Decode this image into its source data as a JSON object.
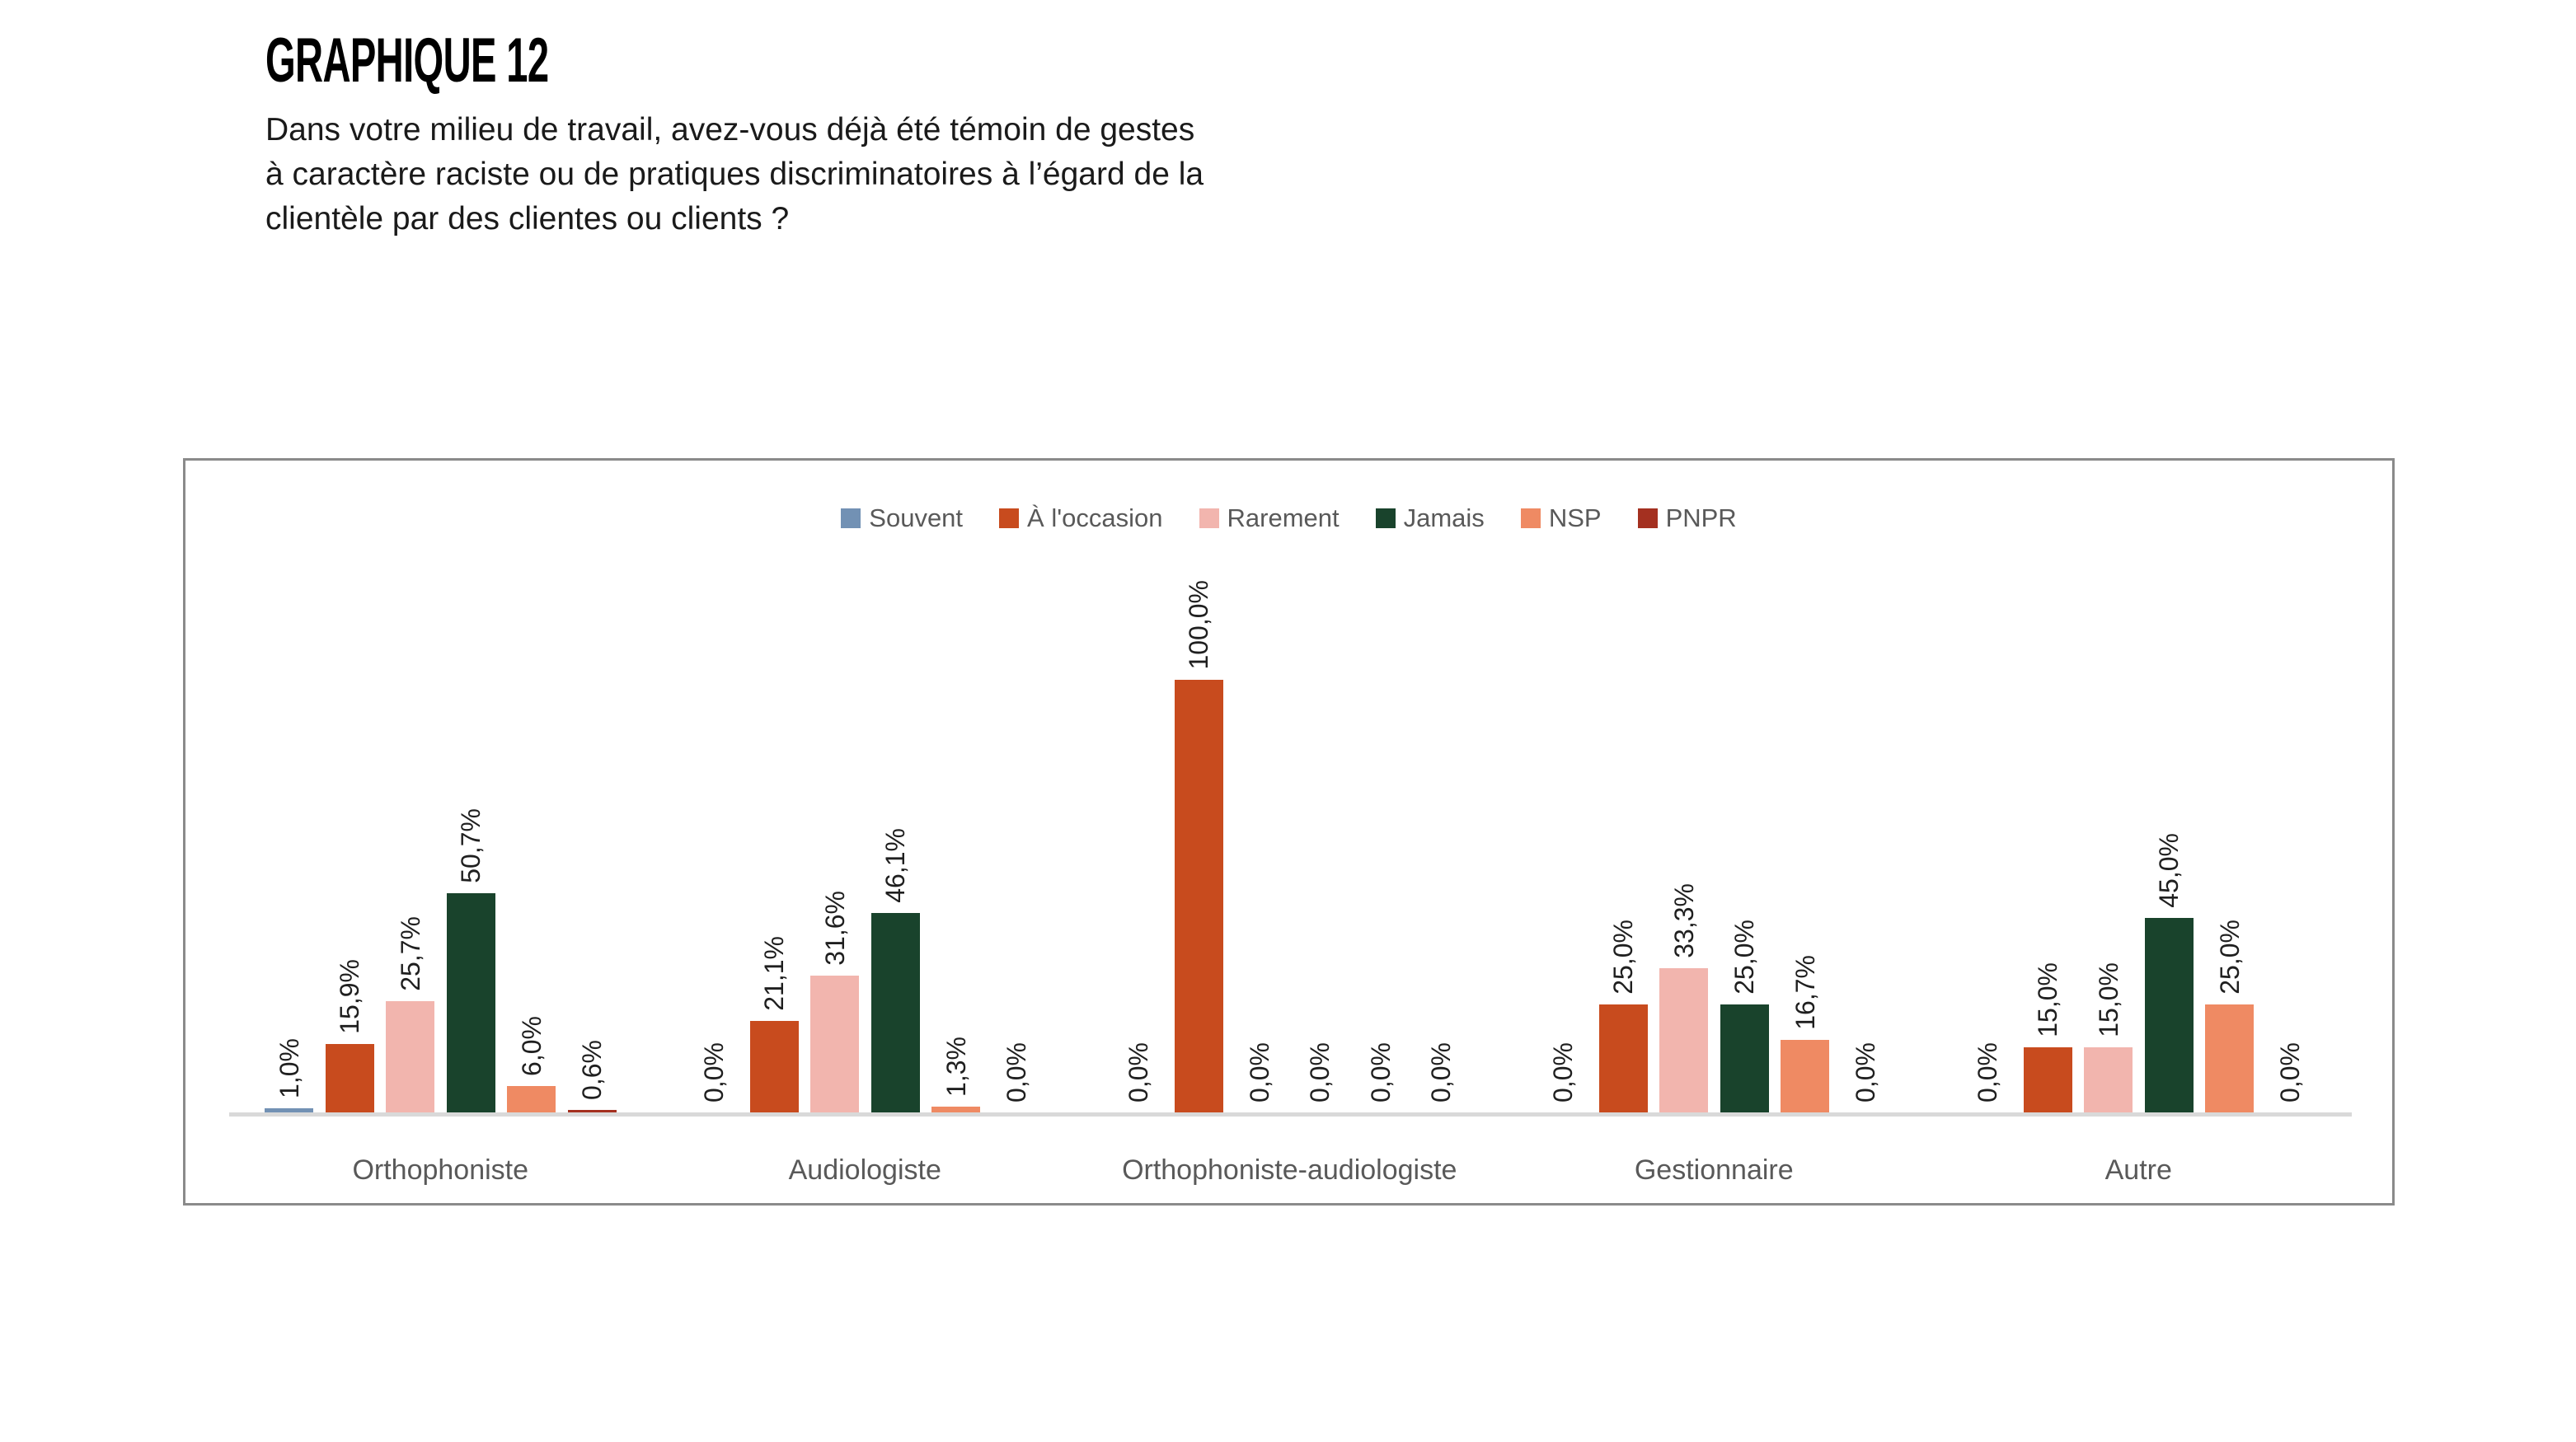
{
  "title": "GRAPHIQUE 12",
  "question": "Dans votre milieu de travail, avez-vous déjà été témoin de gestes\nà caractère raciste ou de pratiques discriminatoires à l’égard de la\nclientèle par des clientes ou clients ?",
  "chart_data": {
    "type": "bar",
    "title": "GRAPHIQUE 12",
    "subtitle": "Dans votre milieu de travail, avez-vous déjà été témoin de gestes à caractère raciste ou de pratiques discriminatoires à l’égard de la clientèle par des clientes ou clients ?",
    "categories": [
      "Orthophoniste",
      "Audiologiste",
      "Orthophoniste-audiologiste",
      "Gestionnaire",
      "Autre"
    ],
    "series": [
      {
        "name": "Souvent",
        "color": "#7291b4",
        "values": [
          1.0,
          0.0,
          0.0,
          0.0,
          0.0
        ],
        "labels": [
          "1,0%",
          "0,0%",
          "0,0%",
          "0,0%",
          "0,0%"
        ]
      },
      {
        "name": "À l'occasion",
        "color": "#c84b1e",
        "values": [
          15.9,
          21.1,
          100.0,
          25.0,
          15.0
        ],
        "labels": [
          "15,9%",
          "21,1%",
          "100,0%",
          "25,0%",
          "15,0%"
        ]
      },
      {
        "name": "Rarement",
        "color": "#f2b5ae",
        "values": [
          25.7,
          31.6,
          0.0,
          33.3,
          15.0
        ],
        "labels": [
          "25,7%",
          "31,6%",
          "0,0%",
          "33,3%",
          "15,0%"
        ]
      },
      {
        "name": "Jamais",
        "color": "#19432c",
        "values": [
          50.7,
          46.1,
          0.0,
          25.0,
          45.0
        ],
        "labels": [
          "50,7%",
          "46,1%",
          "0,0%",
          "25,0%",
          "45,0%"
        ]
      },
      {
        "name": "NSP",
        "color": "#ef8a63",
        "values": [
          6.0,
          1.3,
          0.0,
          16.7,
          25.0
        ],
        "labels": [
          "6,0%",
          "1,3%",
          "0,0%",
          "16,7%",
          "25,0%"
        ]
      },
      {
        "name": "PNPR",
        "color": "#a43020",
        "values": [
          0.6,
          0.0,
          0.0,
          0.0,
          0.0
        ],
        "labels": [
          "0,6%",
          "0,0%",
          "0,0%",
          "0,0%",
          "0,0%"
        ]
      }
    ],
    "ylim": [
      0,
      100
    ],
    "value_labels": "outside-end, rotated 90 degrees, comma decimal, percent",
    "legend_position": "top-center",
    "grid": "off",
    "axis_baseline_color": "#d9d9d9"
  },
  "colors": {
    "panel_border": "#8a8a8a",
    "category_label": "#595959",
    "legend_label": "#595959",
    "value_label": "#1f1f1f",
    "baseline": "#d9d9d9",
    "background": "#ffffff"
  }
}
